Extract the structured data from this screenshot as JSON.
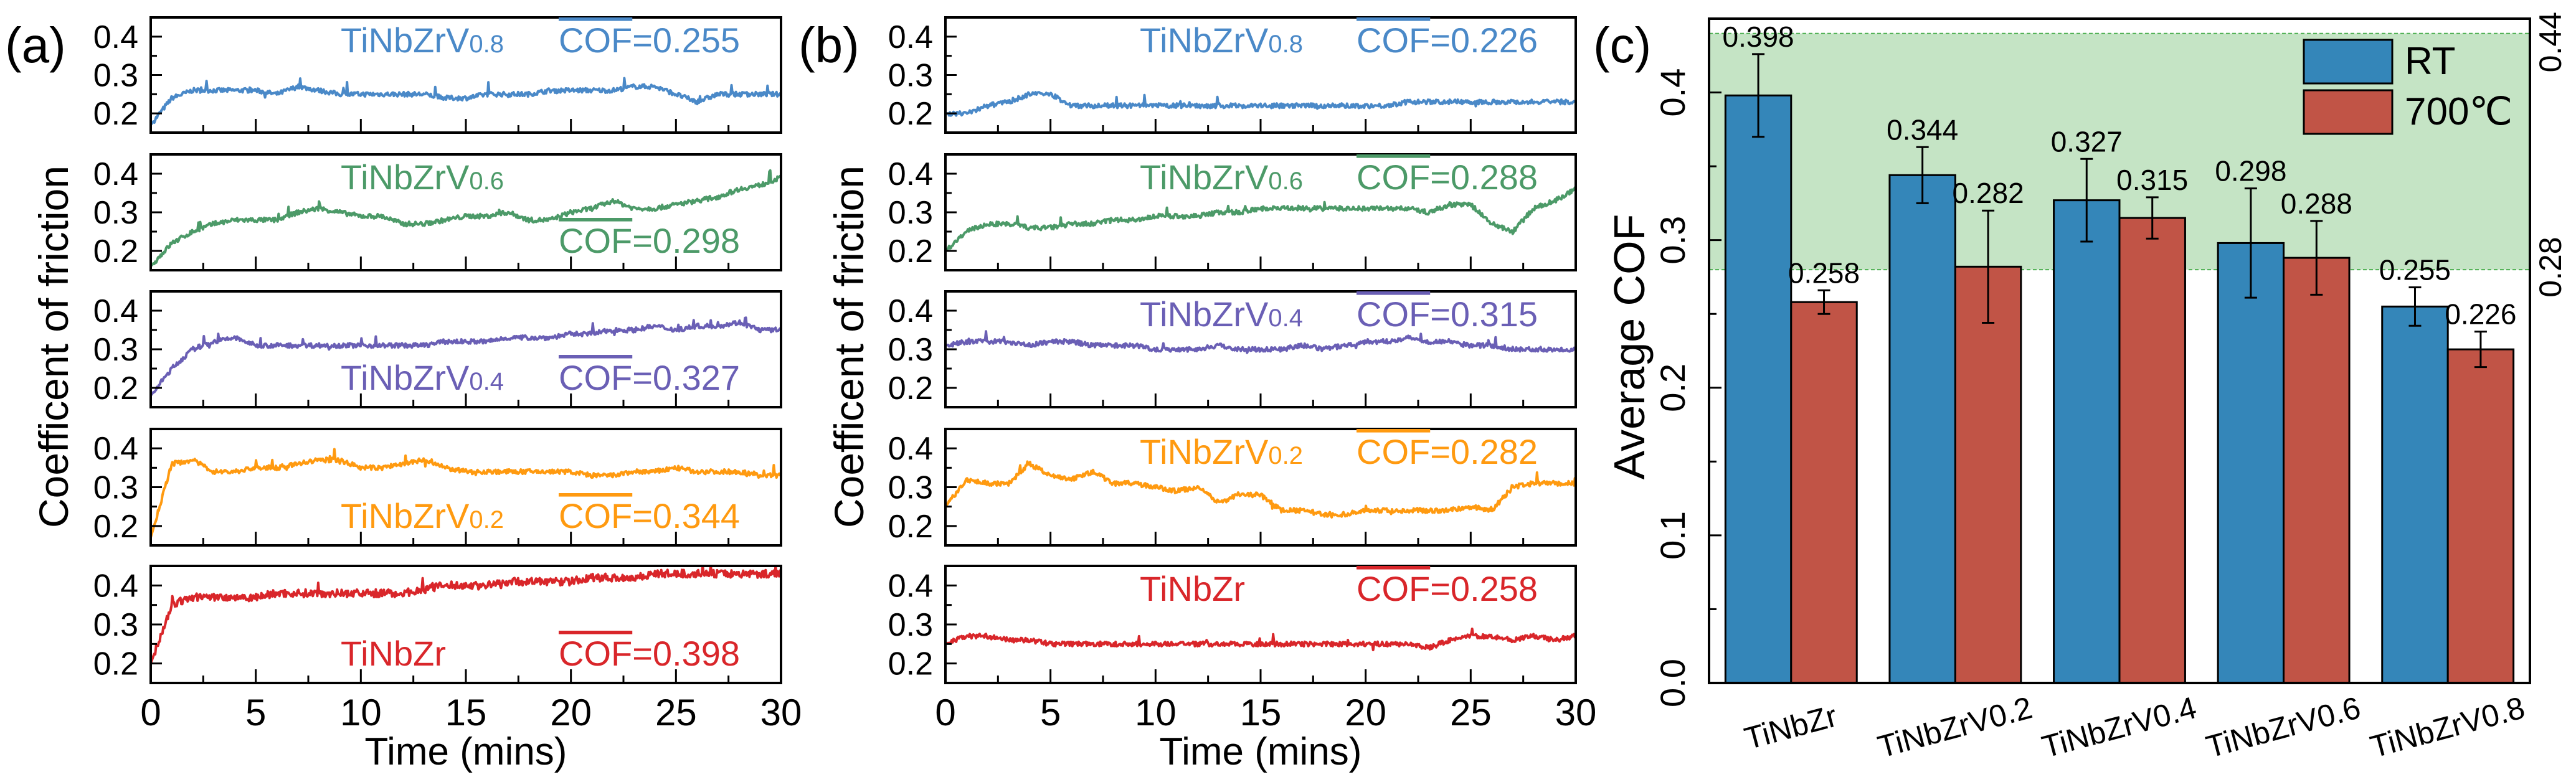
{
  "chart_data": [
    {
      "type": "line",
      "panel_label": "(a)",
      "xlabel": "Time (mins)",
      "ylabel": "Coefficent of friction",
      "xlim": [
        0,
        30
      ],
      "ylim": [
        0.15,
        0.45
      ],
      "x_ticks": [
        "0",
        "5",
        "10",
        "15",
        "20",
        "25",
        "30"
      ],
      "y_ticks": [
        "0.2",
        "0.3",
        "0.4"
      ],
      "x": [
        0,
        1,
        2,
        3,
        4,
        5,
        6,
        7,
        8,
        9,
        10,
        11,
        12,
        13,
        14,
        15,
        16,
        17,
        18,
        19,
        20,
        21,
        22,
        23,
        24,
        25,
        26,
        27,
        28,
        29,
        30
      ],
      "series": [
        {
          "name": "TiNbZrV",
          "sub": "0.8",
          "cof_label": "COF",
          "cof_value": "=0.255",
          "color": "#4a89c8",
          "label_pos": "top",
          "cof_pos": "top",
          "values": [
            0.17,
            0.24,
            0.26,
            0.26,
            0.26,
            0.26,
            0.25,
            0.27,
            0.26,
            0.25,
            0.25,
            0.25,
            0.25,
            0.25,
            0.24,
            0.24,
            0.25,
            0.25,
            0.25,
            0.26,
            0.26,
            0.26,
            0.26,
            0.27,
            0.27,
            0.25,
            0.23,
            0.25,
            0.25,
            0.25,
            0.25
          ]
        },
        {
          "name": "TiNbZrV",
          "sub": "0.6",
          "cof_label": "COF",
          "cof_value": "=0.298",
          "color": "#4c9a68",
          "label_pos": "top",
          "cof_pos": "bottom",
          "values": [
            0.16,
            0.22,
            0.25,
            0.27,
            0.28,
            0.28,
            0.28,
            0.3,
            0.31,
            0.3,
            0.29,
            0.29,
            0.27,
            0.27,
            0.28,
            0.29,
            0.29,
            0.3,
            0.28,
            0.28,
            0.3,
            0.31,
            0.33,
            0.31,
            0.31,
            0.32,
            0.33,
            0.34,
            0.36,
            0.37,
            0.39
          ]
        },
        {
          "name": "TiNbZrV",
          "sub": "0.4",
          "cof_label": "COF",
          "cof_value": "=0.327",
          "color": "#6a5fb5",
          "label_pos": "bottom",
          "cof_pos": "bottom",
          "values": [
            0.18,
            0.25,
            0.3,
            0.32,
            0.33,
            0.31,
            0.31,
            0.31,
            0.31,
            0.31,
            0.31,
            0.31,
            0.31,
            0.31,
            0.32,
            0.32,
            0.32,
            0.33,
            0.33,
            0.33,
            0.34,
            0.34,
            0.35,
            0.35,
            0.36,
            0.35,
            0.36,
            0.36,
            0.37,
            0.35,
            0.35
          ]
        },
        {
          "name": "TiNbZrV",
          "sub": "0.2",
          "cof_label": "COF",
          "cof_value": "=0.344",
          "color": "#ff9a10",
          "label_pos": "bottom",
          "cof_pos": "bottom",
          "values": [
            0.17,
            0.36,
            0.37,
            0.34,
            0.34,
            0.35,
            0.35,
            0.36,
            0.37,
            0.37,
            0.35,
            0.35,
            0.36,
            0.37,
            0.35,
            0.34,
            0.34,
            0.34,
            0.34,
            0.34,
            0.34,
            0.33,
            0.33,
            0.34,
            0.34,
            0.35,
            0.34,
            0.34,
            0.34,
            0.33,
            0.33
          ]
        },
        {
          "name": "TiNbZr",
          "sub": "",
          "cof_label": "COF",
          "cof_value": "=0.398",
          "color": "#d9262a",
          "label_pos": "bottom",
          "cof_pos": "bottom",
          "values": [
            0.2,
            0.35,
            0.37,
            0.37,
            0.37,
            0.37,
            0.38,
            0.38,
            0.38,
            0.38,
            0.38,
            0.38,
            0.38,
            0.39,
            0.4,
            0.4,
            0.4,
            0.41,
            0.41,
            0.41,
            0.41,
            0.42,
            0.42,
            0.42,
            0.43,
            0.43,
            0.43,
            0.43,
            0.43,
            0.43,
            0.43
          ]
        }
      ]
    },
    {
      "type": "line",
      "panel_label": "(b)",
      "xlabel": "Time (mins)",
      "ylabel": "Coefficent of friction",
      "xlim": [
        0,
        30
      ],
      "ylim": [
        0.15,
        0.45
      ],
      "x_ticks": [
        "0",
        "5",
        "10",
        "15",
        "20",
        "25",
        "30"
      ],
      "y_ticks": [
        "0.2",
        "0.3",
        "0.4"
      ],
      "x": [
        0,
        1,
        2,
        3,
        4,
        5,
        6,
        7,
        8,
        9,
        10,
        11,
        12,
        13,
        14,
        15,
        16,
        17,
        18,
        19,
        20,
        21,
        22,
        23,
        24,
        25,
        26,
        27,
        28,
        29,
        30
      ],
      "series": [
        {
          "name": "TiNbZrV",
          "sub": "0.8",
          "cof_label": "COF",
          "cof_value": "=0.226",
          "color": "#4a89c8",
          "label_pos": "top",
          "cof_pos": "top",
          "values": [
            0.2,
            0.2,
            0.22,
            0.23,
            0.25,
            0.25,
            0.22,
            0.22,
            0.22,
            0.22,
            0.22,
            0.22,
            0.22,
            0.22,
            0.22,
            0.22,
            0.22,
            0.22,
            0.22,
            0.22,
            0.22,
            0.22,
            0.23,
            0.23,
            0.23,
            0.23,
            0.23,
            0.23,
            0.23,
            0.23,
            0.23
          ]
        },
        {
          "name": "TiNbZrV",
          "sub": "0.6",
          "cof_label": "COF",
          "cof_value": "=0.288",
          "color": "#4c9a68",
          "label_pos": "top",
          "cof_pos": "top",
          "values": [
            0.2,
            0.25,
            0.27,
            0.27,
            0.26,
            0.26,
            0.27,
            0.27,
            0.28,
            0.28,
            0.29,
            0.29,
            0.29,
            0.3,
            0.3,
            0.31,
            0.31,
            0.31,
            0.31,
            0.31,
            0.31,
            0.31,
            0.31,
            0.3,
            0.32,
            0.32,
            0.27,
            0.25,
            0.31,
            0.33,
            0.36
          ]
        },
        {
          "name": "TiNbZrV",
          "sub": "0.4",
          "cof_label": "COF",
          "cof_value": "=0.315",
          "color": "#6a5fb5",
          "label_pos": "top",
          "cof_pos": "top",
          "values": [
            0.31,
            0.32,
            0.32,
            0.32,
            0.31,
            0.32,
            0.32,
            0.31,
            0.31,
            0.31,
            0.3,
            0.3,
            0.3,
            0.31,
            0.3,
            0.3,
            0.3,
            0.31,
            0.3,
            0.31,
            0.32,
            0.32,
            0.33,
            0.32,
            0.32,
            0.31,
            0.31,
            0.3,
            0.3,
            0.3,
            0.3
          ]
        },
        {
          "name": "TiNbZrV",
          "sub": "0.2",
          "cof_label": "COF",
          "cof_value": "=0.282",
          "color": "#ff9a10",
          "label_pos": "top",
          "cof_pos": "top",
          "values": [
            0.25,
            0.32,
            0.31,
            0.31,
            0.36,
            0.33,
            0.32,
            0.34,
            0.31,
            0.31,
            0.3,
            0.29,
            0.3,
            0.26,
            0.28,
            0.28,
            0.24,
            0.24,
            0.23,
            0.23,
            0.24,
            0.24,
            0.24,
            0.24,
            0.24,
            0.25,
            0.24,
            0.3,
            0.31,
            0.31,
            0.31
          ]
        },
        {
          "name": "TiNbZr",
          "sub": "",
          "cof_label": "COF",
          "cof_value": "=0.258",
          "color": "#d9262a",
          "label_pos": "top",
          "cof_pos": "top",
          "values": [
            0.25,
            0.27,
            0.27,
            0.26,
            0.26,
            0.25,
            0.25,
            0.25,
            0.25,
            0.25,
            0.25,
            0.25,
            0.25,
            0.25,
            0.25,
            0.25,
            0.25,
            0.25,
            0.25,
            0.25,
            0.25,
            0.25,
            0.25,
            0.24,
            0.26,
            0.27,
            0.27,
            0.26,
            0.27,
            0.26,
            0.27
          ]
        }
      ]
    },
    {
      "type": "bar",
      "panel_label": "(c)",
      "ylabel": "Average COF",
      "ylim": [
        0,
        0.45
      ],
      "y_ticks": [
        "0.0",
        "0.1",
        "0.2",
        "0.3",
        "0.4"
      ],
      "right_ticks": [
        "0.44",
        "0.28"
      ],
      "shaded_band": [
        0.28,
        0.44
      ],
      "band_color": "#c5e4c5",
      "legend_position": "top-right",
      "categories": [
        "TiNbZr",
        "TiNbZrV0.2",
        "TiNbZrV0.4",
        "TiNbZrV0.6",
        "TiNbZrV0.8"
      ],
      "series": [
        {
          "name": "RT",
          "color": "#3486b9",
          "values": [
            0.398,
            0.344,
            0.327,
            0.298,
            0.255
          ],
          "errors": [
            0.028,
            0.019,
            0.028,
            0.037,
            0.013
          ],
          "labels": [
            "0.398",
            "0.344",
            "0.327",
            "0.298",
            "0.255"
          ]
        },
        {
          "name": "700℃",
          "color": "#c15446",
          "values": [
            0.258,
            0.282,
            0.315,
            0.288,
            0.226
          ],
          "errors": [
            0.008,
            0.038,
            0.014,
            0.025,
            0.012
          ],
          "labels": [
            "0.258",
            "0.282",
            "0.315",
            "0.288",
            "0.226"
          ]
        }
      ]
    }
  ]
}
